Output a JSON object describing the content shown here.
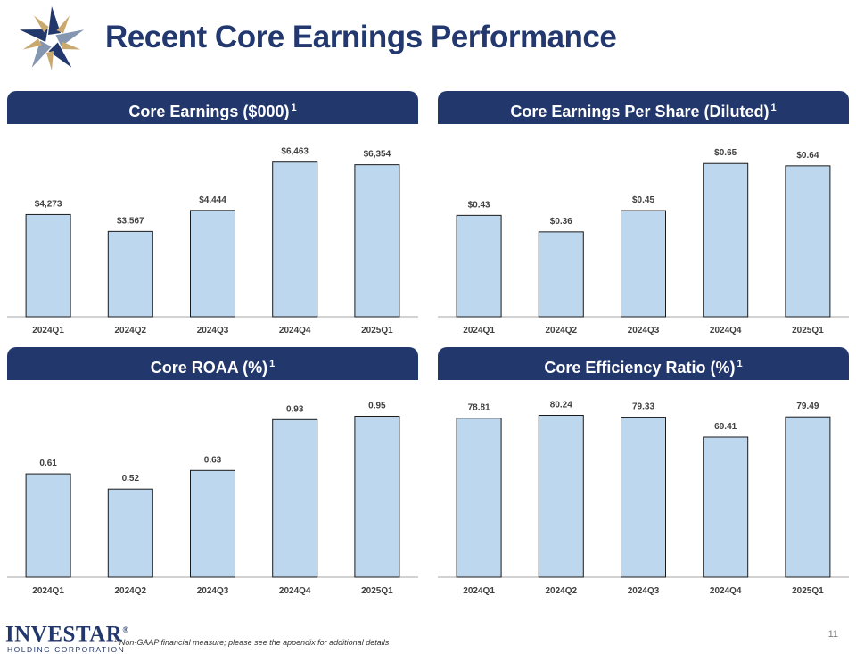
{
  "title": "Recent Core Earnings Performance",
  "footnote": {
    "marker": "1",
    "text": "Non-GAAP financial measure; please see the appendix for additional details"
  },
  "page_number": "11",
  "logo": {
    "name": "INVESTAR",
    "registered": "®",
    "subtitle": "HOLDING CORPORATION"
  },
  "colors": {
    "navy": "#22376b",
    "bar_fill": "#bdd7ee",
    "bar_stroke": "#1a1a1a"
  },
  "chart_data": [
    {
      "type": "bar",
      "title": "Core Earnings ($000)",
      "title_sup": "1",
      "categories": [
        "2024Q1",
        "2024Q2",
        "2024Q3",
        "2024Q4",
        "2025Q1"
      ],
      "values": [
        4273,
        3567,
        4444,
        6463,
        6354
      ],
      "labels": [
        "$4,273",
        "$3,567",
        "$4,444",
        "$6,463",
        "$6,354"
      ],
      "ylim": [
        0,
        6900
      ]
    },
    {
      "type": "bar",
      "title": "Core Earnings Per Share (Diluted)",
      "title_sup": "1",
      "categories": [
        "2024Q1",
        "2024Q2",
        "2024Q3",
        "2024Q4",
        "2025Q1"
      ],
      "values": [
        0.43,
        0.36,
        0.45,
        0.65,
        0.64
      ],
      "labels": [
        "$0.43",
        "$0.36",
        "$0.45",
        "$0.65",
        "$0.64"
      ],
      "ylim": [
        0,
        0.7
      ]
    },
    {
      "type": "bar",
      "title": "Core ROAA (%)",
      "title_sup": "1",
      "categories": [
        "2024Q1",
        "2024Q2",
        "2024Q3",
        "2024Q4",
        "2025Q1"
      ],
      "values": [
        0.61,
        0.52,
        0.63,
        0.93,
        0.95
      ],
      "labels": [
        "0.61",
        "0.52",
        "0.63",
        "0.93",
        "0.95"
      ],
      "ylim": [
        0,
        1.0
      ]
    },
    {
      "type": "bar",
      "title": "Core Efficiency Ratio (%)",
      "title_sup": "1",
      "categories": [
        "2024Q1",
        "2024Q2",
        "2024Q3",
        "2024Q4",
        "2025Q1"
      ],
      "values": [
        78.81,
        80.24,
        79.33,
        69.41,
        79.49
      ],
      "labels": [
        "78.81",
        "80.24",
        "79.33",
        "69.41",
        "79.49"
      ],
      "ylim": [
        0,
        84
      ]
    }
  ]
}
